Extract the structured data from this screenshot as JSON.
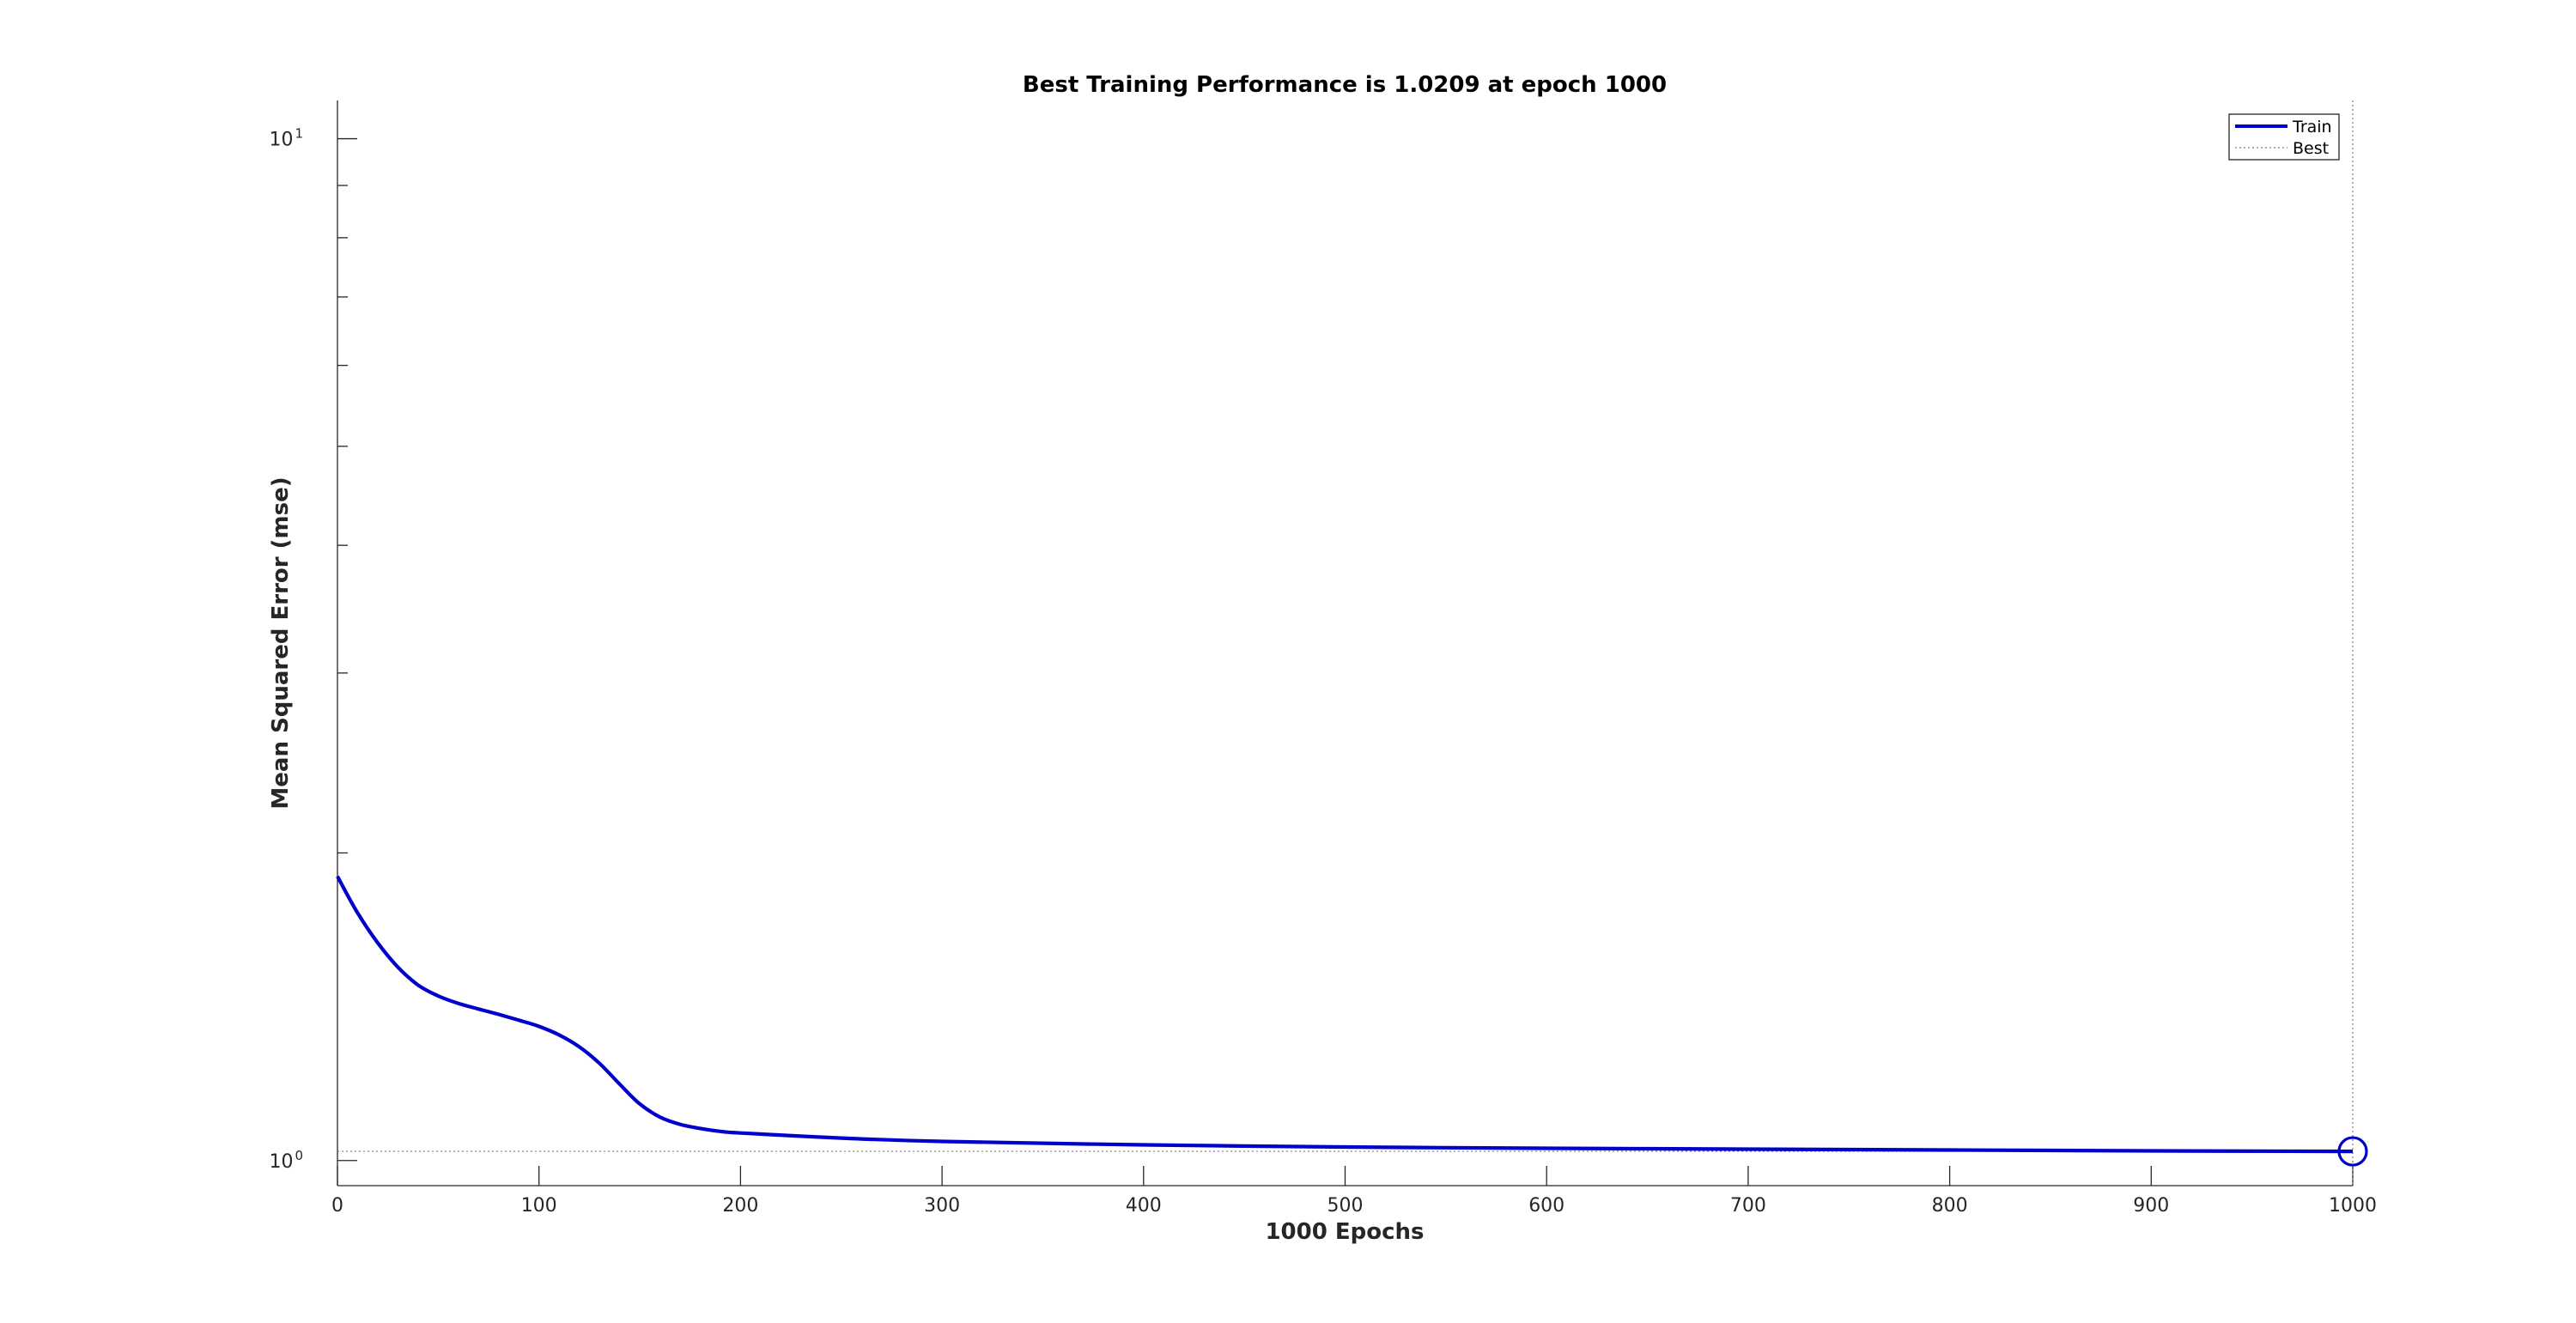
{
  "chart_data": {
    "type": "line",
    "title": "Best Training Performance is 1.0209 at epoch 1000",
    "xlabel": "1000 Epochs",
    "ylabel": "Mean Squared Error  (mse)",
    "xlim": [
      0,
      1000
    ],
    "ylim": [
      0.945,
      10.9
    ],
    "yscale": "log",
    "grid": false,
    "legend_position": "top-right",
    "x_ticks": [
      0,
      100,
      200,
      300,
      400,
      500,
      600,
      700,
      800,
      900,
      1000
    ],
    "y_ticks": [
      {
        "value": 1,
        "base": "10",
        "exponent": "0"
      },
      {
        "value": 10,
        "base": "10",
        "exponent": "1"
      }
    ],
    "y_minor_ticks": [
      2,
      3,
      4,
      5,
      6,
      7,
      8,
      9
    ],
    "series": [
      {
        "name": "Train",
        "color": "#0000cc",
        "x": [
          0,
          10,
          20,
          30,
          40,
          50,
          60,
          70,
          80,
          90,
          100,
          110,
          120,
          130,
          140,
          150,
          160,
          170,
          180,
          190,
          200,
          250,
          300,
          400,
          500,
          600,
          700,
          800,
          900,
          1000
        ],
        "y": [
          1.897,
          1.747,
          1.633,
          1.546,
          1.485,
          1.449,
          1.425,
          1.407,
          1.39,
          1.372,
          1.353,
          1.327,
          1.292,
          1.245,
          1.188,
          1.136,
          1.103,
          1.085,
          1.075,
          1.068,
          1.064,
          1.052,
          1.044,
          1.036,
          1.031,
          1.028,
          1.026,
          1.024,
          1.022,
          1.0209
        ]
      }
    ],
    "best": {
      "name": "Best",
      "epoch": 1000,
      "value": 1.0209,
      "color": "#7a7a7a"
    },
    "x_tick_labels": [
      "0",
      "100",
      "200",
      "300",
      "400",
      "500",
      "600",
      "700",
      "800",
      "900",
      "1000"
    ]
  }
}
